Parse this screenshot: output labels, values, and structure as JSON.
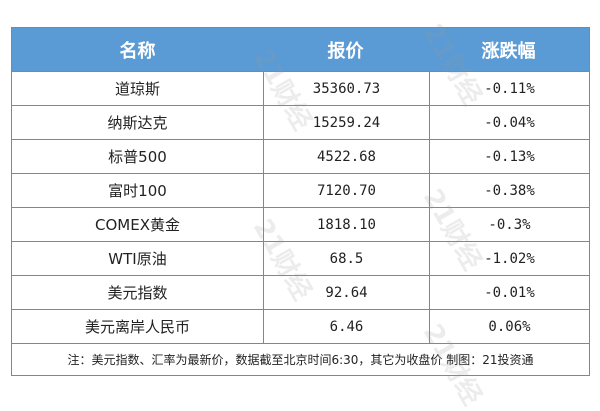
{
  "header": {
    "name": "名称",
    "price": "报价",
    "change": "涨跌幅"
  },
  "rows": [
    {
      "name": "道琼斯",
      "price": "35360.73",
      "change": "-0.11%"
    },
    {
      "name": "纳斯达克",
      "price": "15259.24",
      "change": "-0.04%"
    },
    {
      "name": "标普500",
      "price": "4522.68",
      "change": "-0.13%"
    },
    {
      "name": "富时100",
      "price": "7120.70",
      "change": "-0.38%"
    },
    {
      "name": "COMEX黄金",
      "price": "1818.10",
      "change": "-0.3%"
    },
    {
      "name": "WTI原油",
      "price": "68.5",
      "change": "-1.02%"
    },
    {
      "name": "美元指数",
      "price": "92.64",
      "change": "-0.01%"
    },
    {
      "name": "美元离岸人民币",
      "price": "6.46",
      "change": "0.06%"
    }
  ],
  "footnote": "注：美元指数、汇率为最新价，数据截至北京时间6:30，其它为收盘价 制图：21投资通",
  "watermark": "21财经",
  "colors": {
    "header_bg": "#5b9bd5",
    "border": "#5b8fc7"
  }
}
